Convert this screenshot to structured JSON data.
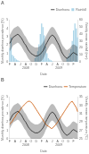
{
  "chart_data": [
    {
      "type": "line",
      "title": "A",
      "categories": [
        "F",
        null,
        null,
        null,
        "A",
        null,
        null,
        null,
        "J",
        null,
        null,
        null,
        "A",
        null,
        null,
        null,
        "O",
        null,
        null,
        null,
        "D",
        null,
        null,
        null,
        "F",
        null,
        null,
        null,
        "A",
        null,
        null,
        null,
        "J",
        null,
        null,
        null,
        "A",
        null,
        null,
        null,
        "O",
        null,
        null,
        null,
        "D",
        null,
        null,
        null,
        "F",
        null,
        null,
        null
      ],
      "x_label": "Date",
      "y_label": "Monthly diarrhea prevalence (%)",
      "y2_label": "Weekly mean rainfall (mm)",
      "ylim": [
        0,
        5
      ],
      "yticks": [
        0,
        1,
        2,
        3,
        4,
        5
      ],
      "y2lim": [
        0,
        60
      ],
      "y2ticks": [
        0,
        10,
        20,
        30,
        40,
        50,
        60
      ],
      "grid": false,
      "legend": "upper right",
      "annotations": [
        {
          "text": "2008",
          "x": 12
        },
        {
          "text": "2009",
          "x": 37
        }
      ],
      "series": [
        {
          "name": "Diarrhoea",
          "type": "line",
          "color": "#222222",
          "values": [
            2.2,
            2.5,
            2.8,
            3.0,
            3.1,
            3.2,
            3.3,
            3.2,
            3.0,
            2.8,
            2.5,
            2.2,
            2.0,
            1.7,
            1.4,
            1.2,
            1.0,
            0.9,
            0.8,
            0.7,
            0.7,
            0.7,
            0.8,
            0.9,
            1.1,
            1.3,
            1.6,
            2.0,
            2.3,
            2.6,
            2.9,
            3.1,
            3.2,
            3.1,
            2.9,
            2.6,
            2.3,
            2.0,
            1.6,
            1.2,
            0.9,
            0.7,
            0.5,
            0.4,
            0.5,
            0.6,
            0.8,
            1.0,
            1.1,
            1.0,
            0.9,
            0.8
          ],
          "upper": [
            3.2,
            3.5,
            3.8,
            4.0,
            4.1,
            4.2,
            4.3,
            4.2,
            4.0,
            3.8,
            3.5,
            3.2,
            3.0,
            2.7,
            2.4,
            2.2,
            2.0,
            1.9,
            1.8,
            1.7,
            1.7,
            1.7,
            1.8,
            1.9,
            2.1,
            2.3,
            2.6,
            3.0,
            3.3,
            3.6,
            3.9,
            4.1,
            4.2,
            4.1,
            3.9,
            3.6,
            3.3,
            3.0,
            2.6,
            2.2,
            1.9,
            1.7,
            1.5,
            1.4,
            1.5,
            1.6,
            1.8,
            2.0,
            2.1,
            2.0,
            1.9,
            1.8
          ],
          "lower": [
            1.2,
            1.5,
            1.8,
            2.0,
            2.1,
            2.2,
            2.3,
            2.2,
            2.0,
            1.8,
            1.5,
            1.2,
            1.0,
            0.7,
            0.4,
            0.2,
            0.0,
            0.0,
            0.0,
            0.0,
            0.0,
            0.0,
            0.0,
            0.0,
            0.1,
            0.3,
            0.6,
            1.0,
            1.3,
            1.6,
            1.9,
            2.1,
            2.2,
            2.1,
            1.9,
            1.6,
            1.3,
            1.0,
            0.6,
            0.2,
            0.0,
            0.0,
            0.0,
            0.0,
            0.0,
            0.0,
            0.0,
            0.0,
            0.1,
            0.0,
            0.0,
            0.0
          ]
        },
        {
          "name": "Rainfall",
          "type": "bar",
          "axis": "y2",
          "color": "#aad4e8",
          "values": [
            20,
            35,
            10,
            8,
            5,
            3,
            2,
            1,
            0,
            0,
            0,
            0,
            0,
            0,
            0,
            0,
            0,
            0,
            0,
            5,
            8,
            15,
            25,
            40,
            55,
            50,
            38,
            22,
            12,
            5,
            3,
            2,
            1,
            0,
            0,
            0,
            0,
            0,
            0,
            0,
            0,
            0,
            0,
            5,
            8,
            12,
            18,
            30,
            45,
            55,
            48,
            35
          ]
        }
      ]
    },
    {
      "type": "line",
      "title": "B",
      "categories": [
        "F",
        null,
        null,
        null,
        "A",
        null,
        null,
        null,
        "J",
        null,
        null,
        null,
        "A",
        null,
        null,
        null,
        "O",
        null,
        null,
        null,
        "D",
        null,
        null,
        null,
        "F",
        null,
        null,
        null,
        "A",
        null,
        null,
        null,
        "J",
        null,
        null,
        null,
        "A",
        null,
        null,
        null,
        "O",
        null,
        null,
        null,
        "D",
        null,
        null,
        null,
        "F",
        null,
        null,
        null
      ],
      "x_label": "Date",
      "y_label": "Monthly diarrhea prevalence (%)",
      "y2_label": "Weekly mean temperature (°C)",
      "ylim": [
        0,
        5
      ],
      "yticks": [
        0,
        1,
        2,
        3,
        4,
        5
      ],
      "y2lim": [
        25,
        35
      ],
      "y2ticks": [
        25,
        27,
        29,
        31,
        33,
        35
      ],
      "grid": false,
      "legend": "upper right",
      "annotations": [
        {
          "text": "2008",
          "x": 12
        },
        {
          "text": "2009",
          "x": 37
        }
      ],
      "series": [
        {
          "name": "Diarrhoea",
          "type": "line",
          "color": "#222222",
          "values": [
            2.2,
            2.5,
            2.8,
            3.0,
            3.1,
            3.2,
            3.3,
            3.2,
            3.0,
            2.8,
            2.5,
            2.2,
            2.0,
            1.7,
            1.4,
            1.2,
            1.0,
            0.9,
            0.8,
            0.7,
            0.7,
            0.7,
            0.8,
            0.9,
            1.1,
            1.3,
            1.6,
            2.0,
            2.3,
            2.6,
            2.9,
            3.1,
            3.2,
            3.1,
            2.9,
            2.6,
            2.3,
            2.0,
            1.6,
            1.2,
            0.9,
            0.7,
            0.5,
            0.4,
            0.5,
            0.6,
            0.8,
            1.0,
            1.1,
            1.0,
            0.9,
            0.8
          ],
          "upper": [
            3.2,
            3.5,
            3.8,
            4.0,
            4.1,
            4.2,
            4.3,
            4.2,
            4.0,
            3.8,
            3.5,
            3.2,
            3.0,
            2.7,
            2.4,
            2.2,
            2.0,
            1.9,
            1.8,
            1.7,
            1.7,
            1.7,
            1.8,
            1.9,
            2.1,
            2.3,
            2.6,
            3.0,
            3.3,
            3.6,
            3.9,
            4.1,
            4.2,
            4.1,
            3.9,
            3.6,
            3.3,
            3.0,
            2.6,
            2.2,
            1.9,
            1.7,
            1.5,
            1.4,
            1.5,
            1.6,
            1.8,
            2.0,
            2.1,
            2.0,
            1.9,
            1.8
          ],
          "lower": [
            1.2,
            1.5,
            1.8,
            2.0,
            2.1,
            2.2,
            2.3,
            2.2,
            2.0,
            1.8,
            1.5,
            1.2,
            1.0,
            0.7,
            0.4,
            0.2,
            0.0,
            0.0,
            0.0,
            0.0,
            0.0,
            0.0,
            0.0,
            0.0,
            0.1,
            0.3,
            0.6,
            1.0,
            1.3,
            1.6,
            1.9,
            2.1,
            2.2,
            2.1,
            1.9,
            1.6,
            1.3,
            1.0,
            0.6,
            0.2,
            0.0,
            0.0,
            0.0,
            0.0,
            0.0,
            0.0,
            0.0,
            0.0,
            0.1,
            0.0,
            0.0,
            0.0
          ]
        },
        {
          "name": "Temperature",
          "type": "line",
          "axis": "y2",
          "color": "#cc5500",
          "values": [
            28.5,
            28.8,
            29.2,
            29.8,
            30.2,
            30.8,
            31.2,
            31.5,
            32.0,
            32.5,
            32.8,
            33.2,
            33.5,
            33.8,
            34.0,
            34.0,
            33.8,
            33.5,
            33.0,
            32.5,
            32.0,
            31.5,
            31.0,
            30.5,
            30.0,
            29.5,
            29.0,
            28.5,
            28.2,
            28.0,
            27.8,
            27.5,
            27.5,
            27.8,
            28.2,
            28.5,
            29.0,
            29.5,
            30.0,
            30.5,
            31.0,
            31.5,
            32.0,
            32.5,
            33.0,
            33.5,
            33.8,
            34.0,
            33.5,
            33.0,
            32.5,
            31.5
          ]
        }
      ]
    }
  ]
}
